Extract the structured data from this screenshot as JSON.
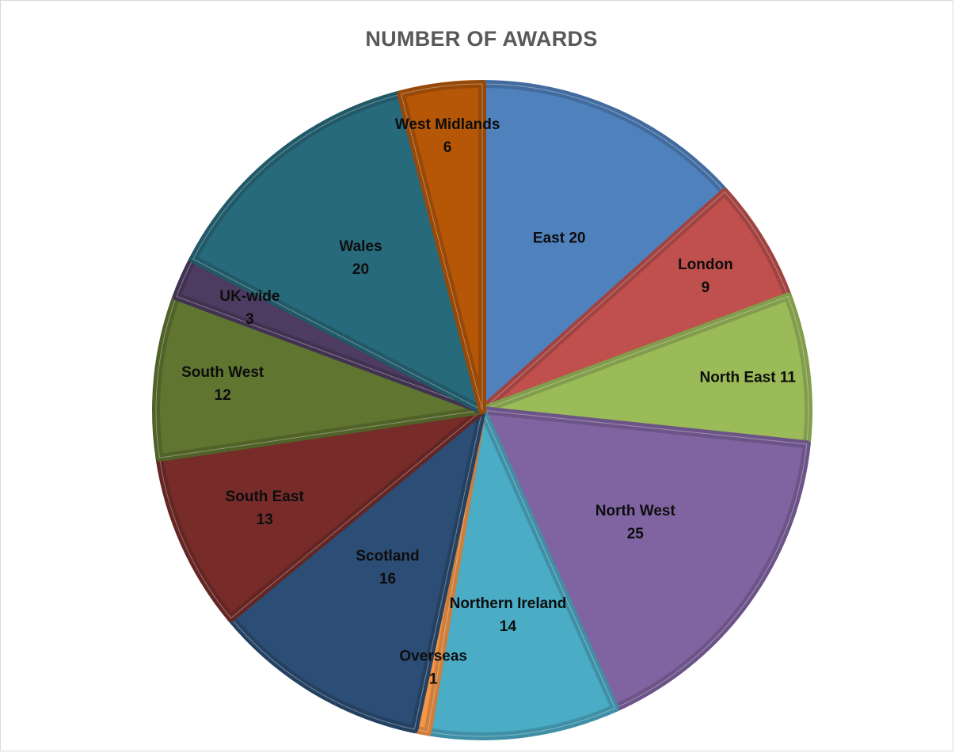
{
  "chart_data": {
    "type": "pie",
    "title": "NUMBER OF AWARDS",
    "slices": [
      {
        "label": "East",
        "value": 20,
        "color": "#4F81BD",
        "display": [
          "East 20"
        ]
      },
      {
        "label": "London",
        "value": 9,
        "color": "#C0504D",
        "display": [
          "London",
          "9"
        ]
      },
      {
        "label": "North East",
        "value": 11,
        "color": "#9BBB59",
        "display": [
          "North East 11"
        ]
      },
      {
        "label": "North West",
        "value": 25,
        "color": "#8064A2",
        "display": [
          "North West",
          "25"
        ]
      },
      {
        "label": "Northern Ireland",
        "value": 14,
        "color": "#4BACC6",
        "display": [
          "Northern Ireland",
          "14"
        ]
      },
      {
        "label": "Overseas",
        "value": 1,
        "color": "#F79646",
        "display": [
          "Overseas",
          "1"
        ]
      },
      {
        "label": "Scotland",
        "value": 16,
        "color": "#2C4D75",
        "display": [
          "Scotland",
          "16"
        ]
      },
      {
        "label": "South East",
        "value": 13,
        "color": "#772C2A",
        "display": [
          "South East",
          "13"
        ]
      },
      {
        "label": "South West",
        "value": 12,
        "color": "#5F7530",
        "display": [
          "South West",
          "12"
        ]
      },
      {
        "label": "UK-wide",
        "value": 3,
        "color": "#4D3B62",
        "display": [
          "UK-wide",
          "3"
        ]
      },
      {
        "label": "Wales",
        "value": 20,
        "color": "#276A7C",
        "display": [
          "Wales",
          "20"
        ]
      },
      {
        "label": "West Midlands",
        "value": 6,
        "color": "#B65708",
        "display": [
          "West Midlands",
          "6"
        ]
      }
    ],
    "start_angle": "12 o'clock",
    "direction": "clockwise",
    "legend": "none",
    "data_labels": "inside"
  }
}
